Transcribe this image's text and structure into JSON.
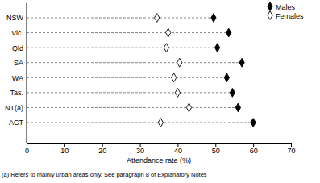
{
  "chart_data": {
    "type": "dot",
    "orientation": "horizontal",
    "x_label": "Attendance rate (%)",
    "annotations": [
      "(a) Refers to mainly urban areas only. See paragraph 8 of Explanatory Notes"
    ],
    "categories": [
      "NSW",
      "Vic.",
      "Qld",
      "SA",
      "WA",
      "Tas.",
      "NT(a)",
      "ACT"
    ],
    "series": [
      {
        "name": "Males",
        "color": "#000000",
        "marker": "diamond",
        "values": [
          49.5,
          53.5,
          50.5,
          57,
          53,
          54.5,
          56,
          60
        ]
      },
      {
        "name": "Females",
        "color": "#000000",
        "marker": "diamond-open",
        "values": [
          34.5,
          37.5,
          37,
          40.5,
          39,
          40,
          43,
          35.5
        ]
      }
    ],
    "xlim": [
      0,
      70
    ],
    "xticks": [
      0,
      10,
      20,
      30,
      40,
      50,
      60,
      70
    ],
    "grid": true,
    "legend": "top right"
  }
}
